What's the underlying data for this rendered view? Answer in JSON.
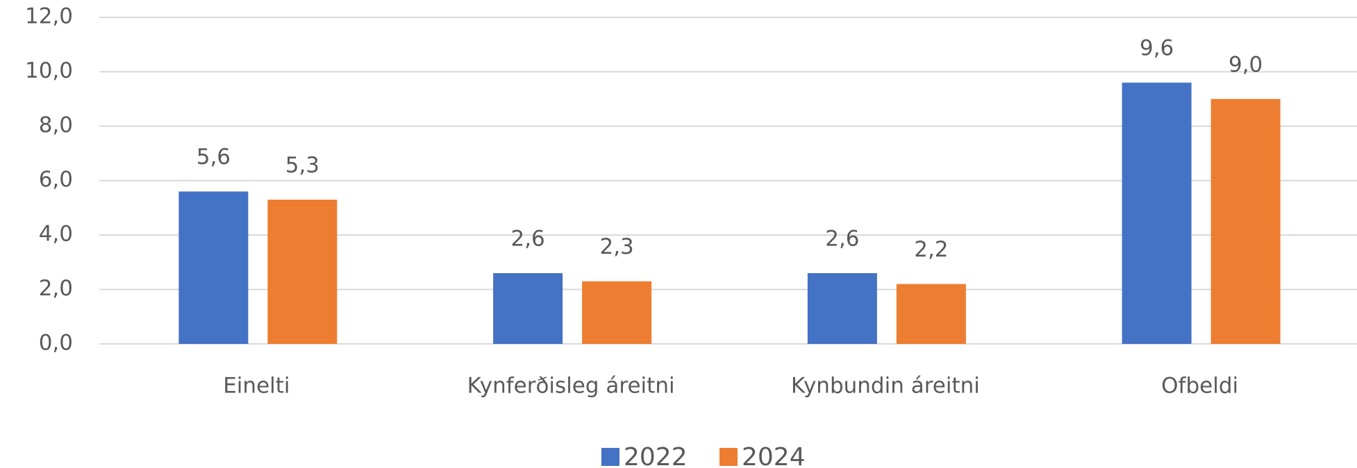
{
  "chart_data": {
    "type": "bar",
    "categories": [
      "Einelti",
      "Kynferðisleg áreitni",
      "Kynbundin áreitni",
      "Ofbeldi"
    ],
    "series": [
      {
        "name": "2022",
        "color": "#4472c4",
        "values": [
          5.6,
          2.6,
          2.6,
          9.6
        ],
        "value_labels": [
          "5,6",
          "2,6",
          "2,6",
          "9,6"
        ]
      },
      {
        "name": "2024",
        "color": "#ed7d31",
        "values": [
          5.3,
          2.3,
          2.2,
          9.0
        ],
        "value_labels": [
          "5,3",
          "2,3",
          "2,2",
          "9,0"
        ]
      }
    ],
    "ylim": [
      0,
      12
    ],
    "yticks": [
      {
        "value": 0,
        "label": "0,0"
      },
      {
        "value": 2,
        "label": "2,0"
      },
      {
        "value": 4,
        "label": "4,0"
      },
      {
        "value": 6,
        "label": "6,0"
      },
      {
        "value": 8,
        "label": "8,0"
      },
      {
        "value": 10,
        "label": "10,0"
      },
      {
        "value": 12,
        "label": "12,0"
      }
    ],
    "grid": true,
    "legend": "bottom"
  }
}
